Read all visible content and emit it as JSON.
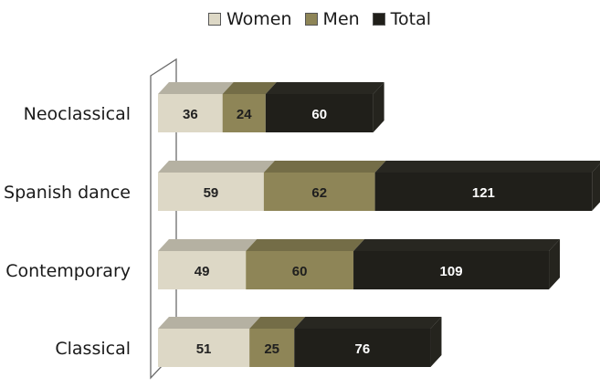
{
  "chart_data": {
    "type": "bar",
    "orientation": "horizontal",
    "stacked": true,
    "style": "3d",
    "categories": [
      "Neoclassical",
      "Spanish dance",
      "Contemporary",
      "Classical"
    ],
    "series": [
      {
        "name": "Women",
        "values": [
          36,
          59,
          49,
          51
        ]
      },
      {
        "name": "Men",
        "values": [
          24,
          62,
          60,
          25
        ]
      },
      {
        "name": "Total",
        "values": [
          60,
          121,
          109,
          76
        ]
      }
    ],
    "xlim": [
      0,
      247
    ],
    "grid": false,
    "legend": "top",
    "data_labels": true,
    "colors": {
      "Women": "#ddd8c6",
      "Men": "#8e8557",
      "Total": "#201f1a"
    },
    "label_colors": {
      "Women": "#222222",
      "Men": "#1e1e1e",
      "Total": "#ffffff"
    }
  }
}
